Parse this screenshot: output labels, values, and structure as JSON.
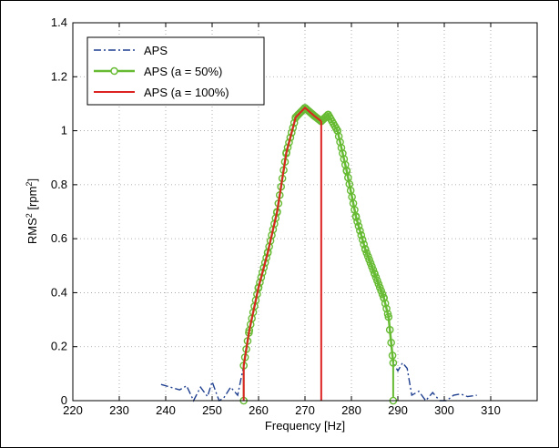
{
  "chart_data": {
    "type": "line",
    "title": "",
    "xlabel": "Frequency [Hz]",
    "ylabel": {
      "base": "RMS",
      "sup1": "2",
      "unit_open": " [rpm",
      "sup2": "2",
      "unit_close": "]"
    },
    "xlim": [
      220,
      320
    ],
    "ylim": [
      0,
      1.4
    ],
    "xticks": [
      220,
      230,
      240,
      250,
      260,
      270,
      280,
      290,
      300,
      310
    ],
    "xtick_labels": [
      "220",
      "230",
      "240",
      "250",
      "260",
      "270",
      "280",
      "290",
      "300",
      "310"
    ],
    "yticks": [
      0,
      0.2,
      0.4,
      0.6,
      0.8,
      1.0,
      1.2,
      1.4
    ],
    "ytick_labels": [
      "0",
      "0.2",
      "0.4",
      "0.6",
      "0.8",
      "1",
      "1.2",
      "1.4"
    ],
    "grid": true,
    "legend_position": "top-left",
    "series": [
      {
        "name": "APS",
        "color": "#1f3f8f",
        "style": "dash-dot",
        "x": [
          239,
          241,
          243,
          244.5,
          246,
          247.5,
          249,
          250,
          251.5,
          252.5,
          254,
          255.5,
          256.8,
          258,
          260,
          262,
          264,
          266,
          268,
          270,
          272,
          273.5,
          275,
          277,
          279,
          281,
          283,
          285,
          287,
          288,
          289,
          290,
          291,
          292,
          293,
          294.5,
          296,
          297.5,
          299,
          300.5,
          302,
          303.5,
          305,
          307
        ],
        "y": [
          0.06,
          0.05,
          0.04,
          0.055,
          0.0,
          0.05,
          0.015,
          0.07,
          0.0,
          0.01,
          0.05,
          0.02,
          0.13,
          0.26,
          0.42,
          0.55,
          0.7,
          0.92,
          1.05,
          1.085,
          1.055,
          1.035,
          1.06,
          1.0,
          0.85,
          0.68,
          0.56,
          0.47,
          0.38,
          0.31,
          0.14,
          0.11,
          0.14,
          0.12,
          0.02,
          0.035,
          0.0,
          0.03,
          0.0,
          0.0,
          0.02,
          0.025,
          0.015,
          0.02
        ]
      },
      {
        "name": "APS (a = 50%)",
        "color": "#66bb33",
        "style": "solid-circle-markers",
        "x": [
          256.8,
          258,
          260,
          262,
          264,
          266,
          268,
          270,
          272,
          273.5,
          275,
          277,
          279,
          281,
          283,
          285,
          287,
          288,
          289
        ],
        "y": [
          0.13,
          0.26,
          0.42,
          0.55,
          0.7,
          0.92,
          1.05,
          1.085,
          1.055,
          1.035,
          1.06,
          1.0,
          0.85,
          0.68,
          0.56,
          0.47,
          0.38,
          0.31,
          0.14
        ]
      },
      {
        "name": "APS (a = 100%)",
        "color": "#dd2222",
        "style": "solid",
        "x": [
          256.8,
          258,
          260,
          262,
          264,
          266,
          268,
          270,
          272,
          273.5
        ],
        "y": [
          0.13,
          0.26,
          0.42,
          0.55,
          0.7,
          0.92,
          1.05,
          1.085,
          1.055,
          1.035
        ]
      }
    ],
    "stems": [
      {
        "series": "APS (a = 50%)",
        "color": "#66bb33",
        "x": [
          256.8,
          289
        ],
        "y": [
          0.13,
          0.14
        ],
        "base_marker": true
      },
      {
        "series": "APS (a = 100%)",
        "color": "#dd2222",
        "x": [
          256.8,
          273.5
        ],
        "y": [
          0.13,
          1.035
        ],
        "base_marker": false
      }
    ]
  }
}
